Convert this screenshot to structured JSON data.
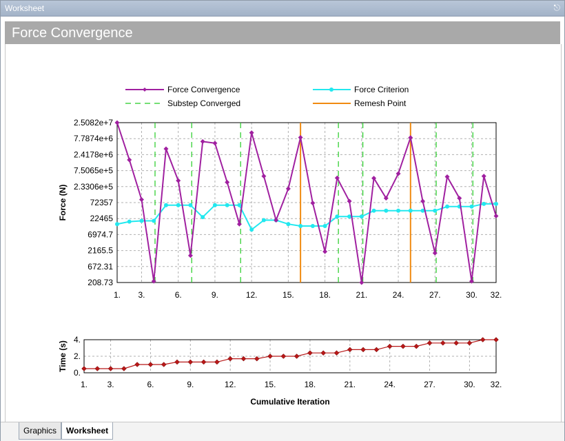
{
  "window": {
    "title": "Worksheet",
    "pin_icon": "pin-icon"
  },
  "header": {
    "title": "Force Convergence"
  },
  "tabs": [
    {
      "label": "Graphics",
      "active": false
    },
    {
      "label": "Worksheet",
      "active": true
    }
  ],
  "colors": {
    "force_convergence": "#a020a0",
    "force_criterion": "#22e8ef",
    "substep": "#22cc22",
    "remesh": "#f08a10",
    "time": "#b81818"
  },
  "chart_data": [
    {
      "type": "line",
      "ylabel": "Force (N)",
      "yscale": "log",
      "y_tick_labels": [
        "2.5082e+7",
        "7.7874e+6",
        "2.4178e+6",
        "7.5065e+5",
        "2.3306e+5",
        "72357",
        "22465",
        "6974.7",
        "2165.5",
        "672.31",
        "208.73"
      ],
      "x_tick_labels": [
        "1.",
        "3.",
        "6.",
        "9.",
        "12.",
        "15.",
        "18.",
        "21.",
        "24.",
        "27.",
        "30.",
        "32."
      ],
      "grid": true,
      "legend_position": "top",
      "legend": [
        "Force Convergence",
        "Force Criterion",
        "Substep Converged",
        "Remesh Point"
      ],
      "x": [
        1,
        2,
        3,
        4,
        5,
        6,
        7,
        8,
        9,
        10,
        11,
        12,
        13,
        14,
        15,
        16,
        17,
        18,
        19,
        20,
        21,
        22,
        23,
        24,
        25,
        26,
        27,
        28,
        29,
        30,
        31,
        32
      ],
      "series": [
        {
          "name": "Force Convergence",
          "values": [
            25082000,
            1650000,
            90000,
            230,
            3700000,
            360000,
            1500,
            6300000,
            5600000,
            320000,
            15000,
            12000000,
            500000,
            20000,
            200000,
            8500000,
            70000,
            2000,
            440000,
            80000,
            209,
            430000,
            100000,
            600000,
            8400000,
            80000,
            1800,
            480000,
            100000,
            230,
            500000,
            27000
          ]
        },
        {
          "name": "Force Criterion",
          "values": [
            15000,
            18000,
            19000,
            19000,
            60000,
            60000,
            60000,
            25000,
            60000,
            60000,
            60000,
            10000,
            20000,
            20000,
            15000,
            13000,
            13000,
            13000,
            26000,
            26000,
            26000,
            40000,
            40000,
            40000,
            40000,
            40000,
            40000,
            54000,
            54000,
            54000,
            66000,
            66000
          ]
        }
      ],
      "substep_converged_x": [
        4.1,
        7.1,
        11.1,
        19.1,
        21.1,
        27.1,
        30.1
      ],
      "remesh_point_x": [
        16,
        25
      ]
    },
    {
      "type": "line",
      "xlabel": "Cumulative Iteration",
      "ylabel": "Time (s)",
      "ylim": [
        0,
        4
      ],
      "y_tick_labels": [
        "4.",
        "2.",
        "0."
      ],
      "x_tick_labels": [
        "1.",
        "3.",
        "6.",
        "9.",
        "12.",
        "15.",
        "18.",
        "21.",
        "24.",
        "27.",
        "30.",
        "32."
      ],
      "grid": true,
      "x": [
        1,
        2,
        3,
        4,
        5,
        6,
        7,
        8,
        9,
        10,
        11,
        12,
        13,
        14,
        15,
        16,
        17,
        18,
        19,
        20,
        21,
        22,
        23,
        24,
        25,
        26,
        27,
        28,
        29,
        30,
        31,
        32
      ],
      "series": [
        {
          "name": "Time",
          "values": [
            0.5,
            0.5,
            0.5,
            0.5,
            1,
            1,
            1,
            1.3,
            1.3,
            1.3,
            1.3,
            1.7,
            1.7,
            1.7,
            2,
            2,
            2,
            2.4,
            2.4,
            2.4,
            2.8,
            2.8,
            2.8,
            3.2,
            3.2,
            3.2,
            3.6,
            3.6,
            3.6,
            3.6,
            4,
            4
          ]
        }
      ]
    }
  ]
}
